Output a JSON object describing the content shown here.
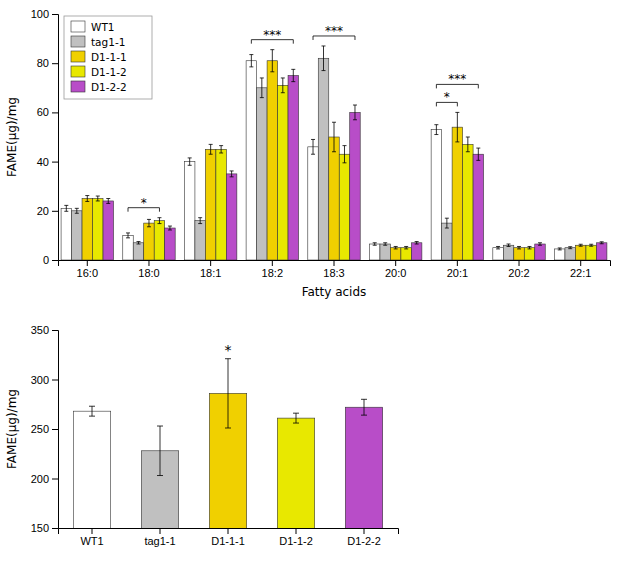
{
  "chart_data": [
    {
      "type": "bar",
      "xlabel": "Fatty acids",
      "ylabel": "FAME(μg)/mg",
      "categories": [
        "16:0",
        "18:0",
        "18:1",
        "18:2",
        "18:3",
        "20:0",
        "20:1",
        "20:2",
        "22:1"
      ],
      "series": [
        {
          "name": "WT1",
          "color": "#ffffff",
          "values": [
            21.0,
            10.0,
            40.0,
            81.0,
            46.0,
            6.5,
            53.0,
            5.0,
            4.5
          ],
          "errors": [
            1.2,
            1.0,
            1.5,
            2.5,
            3.0,
            0.5,
            2.0,
            0.5,
            0.4
          ]
        },
        {
          "name": "tag1-1",
          "color": "#c0c0c0",
          "values": [
            20.0,
            7.0,
            16.0,
            70.0,
            82.0,
            6.5,
            15.0,
            6.0,
            5.0
          ],
          "errors": [
            1.0,
            0.5,
            1.2,
            4.0,
            5.0,
            0.5,
            2.0,
            0.5,
            0.4
          ]
        },
        {
          "name": "D1-1-1",
          "color": "#f0d000",
          "values": [
            25.0,
            15.0,
            45.0,
            81.0,
            50.0,
            5.0,
            54.0,
            5.0,
            6.0
          ],
          "errors": [
            1.2,
            1.5,
            2.0,
            4.5,
            6.0,
            0.5,
            6.0,
            0.5,
            0.4
          ]
        },
        {
          "name": "D1-1-2",
          "color": "#e8e800",
          "values": [
            25.0,
            16.0,
            45.0,
            71.0,
            43.0,
            5.0,
            47.0,
            5.0,
            6.0
          ],
          "errors": [
            1.0,
            1.2,
            1.5,
            3.0,
            3.5,
            0.5,
            3.0,
            0.5,
            0.4
          ]
        },
        {
          "name": "D1-2-2",
          "color": "#b84dc8",
          "values": [
            24.0,
            13.0,
            35.0,
            75.0,
            60.0,
            7.0,
            43.0,
            6.5,
            7.0
          ],
          "errors": [
            1.0,
            0.8,
            1.2,
            2.5,
            3.0,
            0.5,
            2.5,
            0.5,
            0.4
          ]
        }
      ],
      "ylim": [
        0,
        100
      ],
      "yticks": [
        0,
        20,
        40,
        60,
        80,
        100
      ],
      "grid": false,
      "legend": "upper left",
      "annotations": [
        {
          "text": "*",
          "category": "18:0",
          "from": "WT1",
          "to": "D1-1-2"
        },
        {
          "text": "***",
          "category": "18:2",
          "from": "WT1",
          "to": "D1-2-2"
        },
        {
          "text": "***",
          "category": "18:3",
          "from": "WT1",
          "to": "D1-2-2"
        },
        {
          "text": "*",
          "category": "20:1",
          "from": "WT1",
          "to": "D1-1-1"
        },
        {
          "text": "***",
          "category": "20:1",
          "from": "WT1",
          "to": "D1-2-2"
        }
      ]
    },
    {
      "type": "bar",
      "ylabel": "FAME(μg)/mg",
      "categories": [
        "WT1",
        "tag1-1",
        "D1-1-1",
        "D1-1-2",
        "D1-2-2"
      ],
      "values": [
        268,
        228,
        286,
        261,
        272
      ],
      "errors": [
        5,
        25,
        35,
        5,
        8
      ],
      "colors": [
        "#ffffff",
        "#c0c0c0",
        "#f0d000",
        "#e8e800",
        "#b84dc8"
      ],
      "ylim": [
        150,
        350
      ],
      "yticks": [
        150,
        200,
        250,
        300,
        350
      ],
      "grid": false,
      "annotations": [
        {
          "text": "*",
          "category": "D1-1-1"
        }
      ]
    }
  ]
}
